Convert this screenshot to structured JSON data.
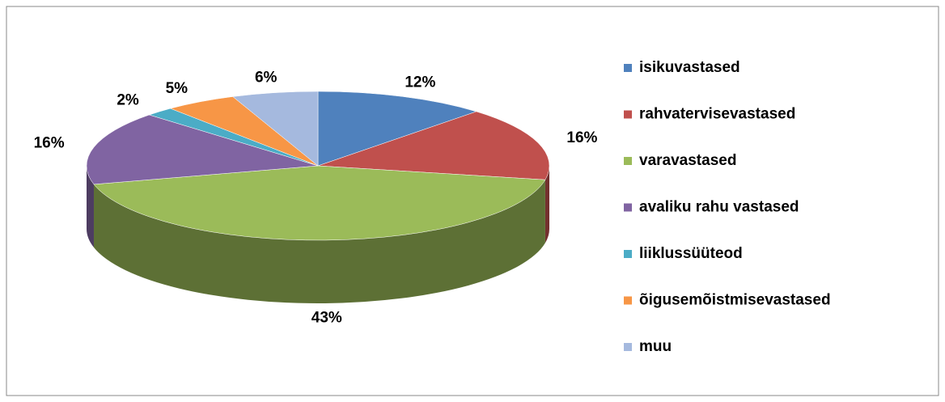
{
  "chart_data": {
    "type": "pie",
    "categories": [
      "isikuvastased",
      "rahvatervisevastased",
      "varavastased",
      "avaliku rahu vastased",
      "liiklussüüteod",
      "õigusemõistmisevastased",
      "muu"
    ],
    "values": [
      12,
      16,
      43,
      16,
      2,
      5,
      6
    ],
    "value_labels": [
      "12%",
      "16%",
      "43%",
      "16%",
      "2%",
      "5%",
      "6%"
    ],
    "colors": [
      "#4f81bd",
      "#c0504d",
      "#9bbb59",
      "#8064a2",
      "#4bacc6",
      "#f79646",
      "#a5b9de"
    ],
    "legend": "right"
  }
}
